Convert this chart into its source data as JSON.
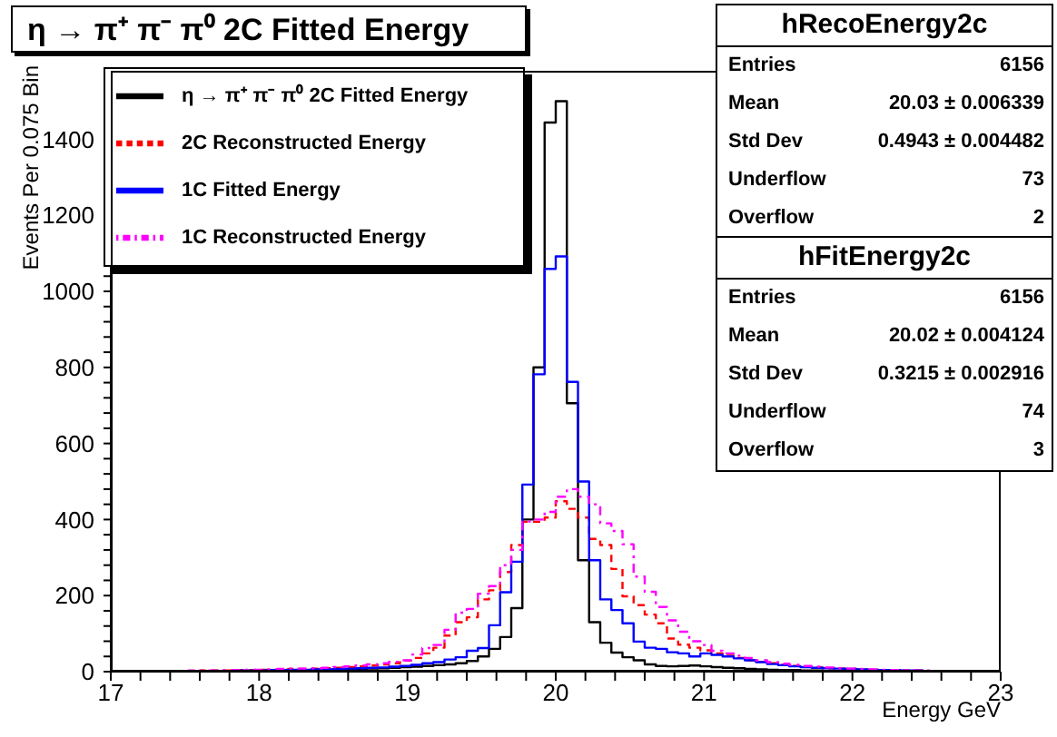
{
  "chart_data": {
    "type": "histogram",
    "title": "η → π⁺ π⁻ π⁰ 2C Fitted Energy",
    "xlabel": "Energy GeV",
    "ylabel": "Events Per 0.075 Bin",
    "bins": [
      17,
      17.075,
      17.15,
      17.225,
      17.3,
      17.375,
      17.45,
      17.525,
      17.6,
      17.675,
      17.75,
      17.825,
      17.9,
      17.975,
      18.05,
      18.125,
      18.2,
      18.275,
      18.35,
      18.425,
      18.5,
      18.575,
      18.65,
      18.725,
      18.8,
      18.875,
      18.95,
      19.025,
      19.1,
      19.175,
      19.25,
      19.325,
      19.4,
      19.475,
      19.55,
      19.625,
      19.7,
      19.775,
      19.85,
      19.925,
      20,
      20.075,
      20.15,
      20.225,
      20.3,
      20.375,
      20.45,
      20.525,
      20.6,
      20.675,
      20.75,
      20.825,
      20.9,
      20.975,
      21.05,
      21.125,
      21.2,
      21.275,
      21.35,
      21.425,
      21.5,
      21.575,
      21.65,
      21.725,
      21.8,
      21.875,
      21.95,
      22.025,
      22.1,
      22.175,
      22.25,
      22.325,
      22.4,
      22.475,
      22.55,
      22.625,
      22.7,
      22.775,
      22.85,
      22.925,
      23
    ],
    "series": [
      {
        "name": "η → π⁺ π⁻ π⁰ 2C Fitted Energy",
        "color": "#000000",
        "line_style": "solid",
        "values": [
          0,
          0,
          0,
          0,
          1,
          0,
          1,
          1,
          1,
          2,
          1,
          2,
          2,
          3,
          3,
          3,
          4,
          4,
          5,
          5,
          6,
          6,
          7,
          8,
          9,
          10,
          12,
          13,
          15,
          17,
          19,
          22,
          28,
          40,
          60,
          91,
          167,
          400,
          800,
          1444,
          1500,
          706,
          293,
          130,
          76,
          50,
          38,
          30,
          19,
          15,
          14,
          15,
          16,
          14,
          12,
          10,
          9,
          7,
          6,
          5,
          4,
          4,
          3,
          3,
          2,
          2,
          2,
          1,
          1,
          1,
          1,
          1,
          0,
          1,
          0,
          0,
          0,
          0,
          0,
          0
        ]
      },
      {
        "name": "2C Reconstructed Energy",
        "color": "#ff0000",
        "line_style": "dashed",
        "values": [
          0,
          1,
          1,
          1,
          1,
          2,
          2,
          2,
          3,
          3,
          3,
          4,
          4,
          5,
          5,
          6,
          7,
          7,
          8,
          9,
          10,
          12,
          14,
          16,
          19,
          22,
          29,
          36,
          48,
          63,
          95,
          130,
          143,
          190,
          214,
          262,
          333,
          394,
          394,
          405,
          448,
          428,
          405,
          349,
          333,
          270,
          198,
          175,
          150,
          127,
          87,
          71,
          63,
          56,
          48,
          42,
          36,
          30,
          26,
          22,
          18,
          15,
          13,
          11,
          9,
          8,
          7,
          6,
          5,
          4,
          4,
          3,
          3,
          2,
          2,
          2,
          1,
          1,
          1,
          1
        ]
      },
      {
        "name": "1C Fitted Energy",
        "color": "#0000ff",
        "line_style": "solid",
        "values": [
          0,
          1,
          0,
          1,
          1,
          1,
          1,
          2,
          2,
          2,
          2,
          3,
          3,
          3,
          4,
          4,
          5,
          5,
          6,
          6,
          7,
          8,
          9,
          10,
          11,
          13,
          15,
          18,
          22,
          25,
          32,
          38,
          55,
          62,
          122,
          209,
          289,
          492,
          782,
          1059,
          1092,
          762,
          500,
          293,
          190,
          162,
          127,
          79,
          63,
          60,
          51,
          48,
          40,
          48,
          44,
          40,
          35,
          30,
          25,
          20,
          17,
          14,
          12,
          10,
          9,
          8,
          7,
          6,
          5,
          4,
          4,
          3,
          3,
          2,
          2,
          2,
          1,
          1,
          1,
          1
        ]
      },
      {
        "name": "1C Reconstructed Energy",
        "color": "#ff00ff",
        "line_style": "dotted",
        "values": [
          0,
          1,
          1,
          1,
          2,
          2,
          2,
          3,
          3,
          3,
          4,
          4,
          5,
          5,
          6,
          7,
          8,
          8,
          9,
          10,
          12,
          14,
          16,
          19,
          22,
          26,
          30,
          45,
          62,
          70,
          110,
          155,
          165,
          205,
          225,
          280,
          320,
          395,
          400,
          420,
          460,
          480,
          460,
          440,
          390,
          370,
          335,
          250,
          210,
          170,
          135,
          105,
          80,
          70,
          55,
          48,
          42,
          36,
          30,
          25,
          21,
          18,
          15,
          13,
          11,
          9,
          8,
          7,
          6,
          5,
          4,
          4,
          3,
          3,
          2,
          2,
          2,
          1,
          1,
          1
        ]
      }
    ],
    "xlim": [
      17,
      23
    ],
    "xticks": [
      17,
      {
        "value": 17.2,
        "label": null
      },
      {
        "value": 17.4,
        "label": null
      },
      {
        "value": 17.6,
        "label": null
      },
      {
        "value": 17.8,
        "label": null
      },
      18,
      {
        "value": 18.2,
        "label": null
      },
      {
        "value": 18.4,
        "label": null
      },
      {
        "value": 18.6,
        "label": null
      },
      {
        "value": 18.8,
        "label": null
      },
      19,
      {
        "value": 19.2,
        "label": null
      },
      {
        "value": 19.4,
        "label": null
      },
      {
        "value": 19.6,
        "label": null
      },
      {
        "value": 19.8,
        "label": null
      },
      20,
      {
        "value": 20.2,
        "label": null
      },
      {
        "value": 20.4,
        "label": null
      },
      {
        "value": 20.6,
        "label": null
      },
      {
        "value": 20.8,
        "label": null
      },
      21,
      {
        "value": 21.2,
        "label": null
      },
      {
        "value": 21.4,
        "label": null
      },
      {
        "value": 21.6,
        "label": null
      },
      {
        "value": 21.8,
        "label": null
      },
      22,
      {
        "value": 22.2,
        "label": null
      },
      {
        "value": 22.4,
        "label": null
      },
      {
        "value": 22.6,
        "label": null
      },
      {
        "value": 22.8,
        "label": null
      },
      23
    ],
    "ylim": [
      0,
      1580
    ],
    "yticks": [
      0,
      {
        "value": 40,
        "label": null
      },
      {
        "value": 80,
        "label": null
      },
      {
        "value": 120,
        "label": null
      },
      {
        "value": 160,
        "label": null
      },
      200,
      {
        "value": 240,
        "label": null
      },
      {
        "value": 280,
        "label": null
      },
      {
        "value": 320,
        "label": null
      },
      {
        "value": 360,
        "label": null
      },
      400,
      {
        "value": 440,
        "label": null
      },
      {
        "value": 480,
        "label": null
      },
      {
        "value": 520,
        "label": null
      },
      {
        "value": 560,
        "label": null
      },
      600,
      {
        "value": 640,
        "label": null
      },
      {
        "value": 680,
        "label": null
      },
      {
        "value": 720,
        "label": null
      },
      {
        "value": 760,
        "label": null
      },
      800,
      {
        "value": 840,
        "label": null
      },
      {
        "value": 880,
        "label": null
      },
      {
        "value": 920,
        "label": null
      },
      {
        "value": 960,
        "label": null
      },
      1000,
      {
        "value": 1040,
        "label": null
      },
      {
        "value": 1080,
        "label": null
      },
      {
        "value": 1120,
        "label": null
      },
      {
        "value": 1160,
        "label": null
      },
      1200,
      {
        "value": 1240,
        "label": null
      },
      {
        "value": 1280,
        "label": null
      },
      {
        "value": 1320,
        "label": null
      },
      {
        "value": 1360,
        "label": null
      },
      1400,
      {
        "value": 1440,
        "label": null
      },
      {
        "value": 1480,
        "label": null
      },
      {
        "value": 1520,
        "label": null
      },
      {
        "value": 1560,
        "label": null
      }
    ],
    "legend": "top left",
    "grid": false,
    "annotations": [
      "hRecoEnergy2c",
      "Entries",
      "6156",
      "Mean",
      "20.03 ± 0.006339",
      "Std Dev",
      "0.4943 ± 0.004482",
      "Underflow",
      "73",
      "Overflow",
      "2",
      "hFitEnergy2c",
      "Entries",
      "6156",
      "Mean",
      "20.02 ± 0.004124",
      "Std Dev",
      "0.3215 ± 0.002916",
      "Underflow",
      "74",
      "Overflow",
      "3"
    ]
  }
}
